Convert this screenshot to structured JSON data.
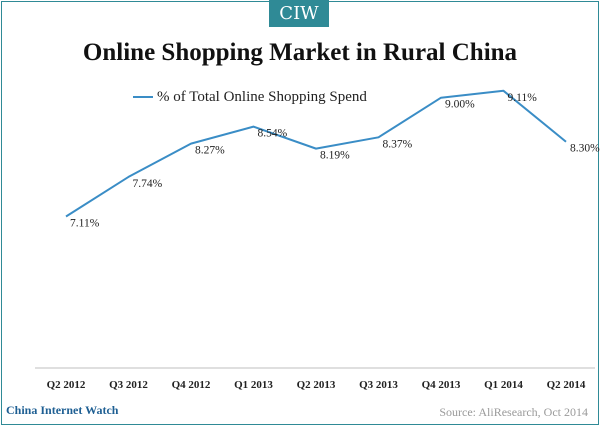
{
  "header": {
    "badge": "CIW"
  },
  "footer": {
    "brand": "China Internet Watch",
    "source": "Source: AliResearch, Oct 2014"
  },
  "chart_data": {
    "type": "line",
    "title": "Online Shopping Market in Rural China",
    "categories": [
      "Q2 2012",
      "Q3 2012",
      "Q4 2012",
      "Q1 2013",
      "Q2 2013",
      "Q3 2013",
      "Q4 2013",
      "Q1 2014",
      "Q2 2014"
    ],
    "series": [
      {
        "name": "% of Total Online Shopping Spend",
        "values": [
          7.11,
          7.74,
          8.27,
          8.54,
          8.19,
          8.37,
          9.0,
          9.11,
          8.3
        ],
        "labels": [
          "7.11%",
          "7.74%",
          "8.27%",
          "8.54%",
          "8.19%",
          "8.37%",
          "9.00%",
          "9.11%",
          "8.30%"
        ],
        "color": "#3a8dc6"
      }
    ],
    "ylim": [
      4.7,
      9.6
    ],
    "grid": false,
    "legend": "top-left"
  }
}
